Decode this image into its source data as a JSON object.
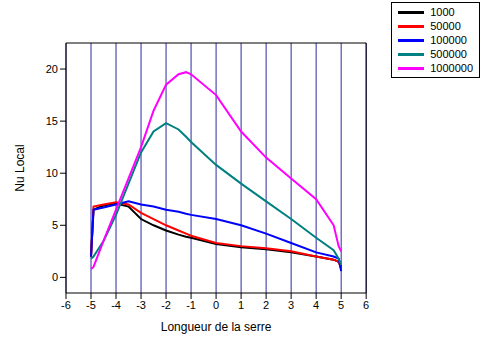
{
  "chart_data": {
    "type": "line",
    "x_label": "Longueur de la serre",
    "y_label": "Nu Local",
    "x": [
      -5,
      -4.9,
      -4.5,
      -4,
      -3.5,
      -3,
      -2.5,
      -2,
      -1.5,
      -1.2,
      -1,
      0,
      1,
      2,
      3,
      4,
      4.7,
      4.9,
      5
    ],
    "series": [
      {
        "name": "1000",
        "color": "#000000",
        "values": [
          2,
          6.5,
          6.9,
          7.1,
          6.8,
          5.6,
          5,
          4.5,
          4.1,
          3.9,
          3.8,
          3.2,
          2.9,
          2.7,
          2.4,
          2,
          1.7,
          1.5,
          1
        ]
      },
      {
        "name": "50000",
        "color": "#ff0000",
        "values": [
          2,
          6.8,
          7,
          7.2,
          7,
          6.2,
          5.6,
          5,
          4.5,
          4.2,
          4,
          3.3,
          3,
          2.8,
          2.5,
          2,
          1.7,
          1.5,
          0.8
        ]
      },
      {
        "name": "100000",
        "color": "#0000ff",
        "values": [
          2,
          6.5,
          6.7,
          7,
          7.3,
          7,
          6.8,
          6.5,
          6.3,
          6.1,
          6,
          5.6,
          5,
          4.2,
          3.3,
          2.4,
          2,
          1.8,
          0.6
        ]
      },
      {
        "name": "500000",
        "color": "#008080",
        "values": [
          1.8,
          2,
          3.5,
          6,
          9,
          12,
          14,
          14.8,
          14.2,
          13.5,
          13,
          10.8,
          9,
          7.3,
          5.6,
          3.8,
          2.6,
          1.8,
          1.2
        ]
      },
      {
        "name": "1000000",
        "color": "#ff00ff",
        "values": [
          0.8,
          1,
          3.5,
          6.5,
          9.5,
          12.5,
          16,
          18.5,
          19.5,
          19.7,
          19.5,
          17.5,
          14,
          11.5,
          9.5,
          7.5,
          5,
          3,
          2.5
        ]
      }
    ],
    "xlim": [
      -6,
      6
    ],
    "xticks": [
      -6,
      -5,
      -4,
      -3,
      -2,
      -1,
      0,
      1,
      2,
      3,
      4,
      5,
      6
    ],
    "ylim": [
      -1.5,
      22.5
    ],
    "yticks": [
      0,
      5,
      10,
      15,
      20
    ],
    "grid": true,
    "legend": "upper right"
  }
}
